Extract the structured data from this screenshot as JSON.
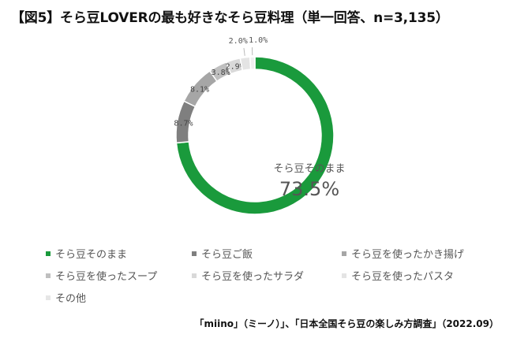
{
  "title": "【図5】そら豆LOVERの最も好きなそら豆料理（単一回答、n=3,135）",
  "source": "「miino」（ミーノ）」、「日本全国そら豆の楽しみ方調査」（2022.09）",
  "chart_data": {
    "type": "pie",
    "style": "donut",
    "slices": [
      {
        "name": "そら豆そのまま",
        "value": 73.5,
        "label": "73.5%",
        "color": "#1a9a3c"
      },
      {
        "name": "そら豆ご飯",
        "value": 8.7,
        "label": "8.7%",
        "color": "#7f7f7f"
      },
      {
        "name": "そら豆を使ったかき揚げ",
        "value": 8.1,
        "label": "8.1%",
        "color": "#a6a6a6"
      },
      {
        "name": "そら豆を使ったスープ",
        "value": 3.8,
        "label": "3.8%",
        "color": "#bfbfbf"
      },
      {
        "name": "そら豆を使ったサラダ",
        "value": 2.9,
        "label": "2.9%",
        "color": "#d9d9d9"
      },
      {
        "name": "そら豆を使ったパスタ",
        "value": 2.0,
        "label": "2.0%",
        "color": "#e4e4e4"
      },
      {
        "name": "その他",
        "value": 1.0,
        "label": "1.0%",
        "color": "#f0f0f0"
      }
    ],
    "legend_position": "bottom"
  }
}
